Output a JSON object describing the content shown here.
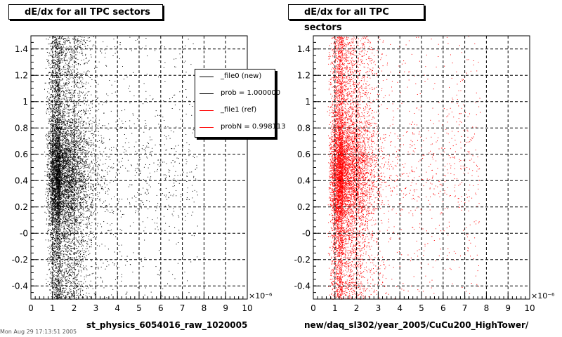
{
  "chart_data": [
    {
      "type": "scatter",
      "title": "dE/dx for all TPC sectors",
      "xlabel": "st_physics_6054016_raw_1020005",
      "ylabel": "",
      "x_exponent_label": "×10⁻⁶",
      "xlim": [
        0,
        10
      ],
      "ylim": [
        -0.5,
        1.5
      ],
      "x_ticks": [
        "0",
        "1",
        "2",
        "3",
        "4",
        "5",
        "6",
        "7",
        "8",
        "9",
        "10"
      ],
      "y_ticks": [
        "-0.4",
        "-0.2",
        "-0",
        "0.2",
        "0.4",
        "0.6",
        "0.8",
        "1",
        "1.2",
        "1.4"
      ],
      "grid": true,
      "series": [
        {
          "name": "_file0 (new)",
          "color": "#000000",
          "x_peak_regions": [
            [
              0.7,
              2.0
            ],
            [
              2.0,
              2.9
            ]
          ],
          "description_note": ""
        }
      ],
      "legend": {
        "position": "top-right",
        "entries": [
          {
            "label": "_file0 (new)",
            "color": "#000000"
          },
          {
            "label": "prob = 1.000000",
            "color": "#000000"
          },
          {
            "label": "_file1 (ref)",
            "color": "#ff0000"
          },
          {
            "label": "probN = 0.998113",
            "color": "#ff0000"
          }
        ]
      }
    },
    {
      "type": "scatter",
      "title": "dE/dx for all TPC sectors",
      "xlabel": "new/daq_sl302/year_2005/CuCu200_HighTower/",
      "ylabel": "",
      "x_exponent_label": "×10⁻⁶",
      "xlim": [
        0,
        10
      ],
      "ylim": [
        -0.5,
        1.5
      ],
      "x_ticks": [
        "0",
        "1",
        "2",
        "3",
        "4",
        "5",
        "6",
        "7",
        "8",
        "9",
        "10"
      ],
      "y_ticks": [
        "-0.4",
        "-0.2",
        "-0",
        "0.2",
        "0.4",
        "0.6",
        "0.8",
        "1",
        "1.2",
        "1.4"
      ],
      "grid": true,
      "series": [
        {
          "name": "_file1 (ref)",
          "color": "#ff0000",
          "x_peak_regions": [
            [
              0.7,
              2.0
            ],
            [
              2.0,
              2.9
            ]
          ],
          "description_note": ""
        }
      ]
    }
  ],
  "footer_text": "Mon Aug 29 17:13:51 2005"
}
